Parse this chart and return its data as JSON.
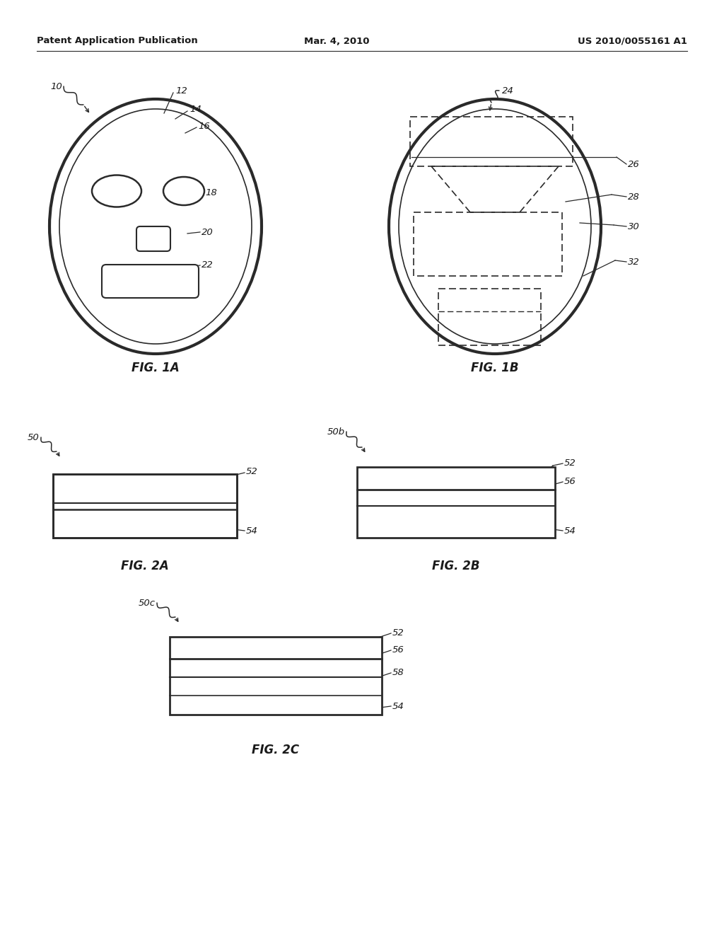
{
  "bg_color": "#ffffff",
  "header_left": "Patent Application Publication",
  "header_mid": "Mar. 4, 2010",
  "header_right": "US 2010/0055161 A1",
  "fig1a_label": "FIG. 1A",
  "fig1b_label": "FIG. 1B",
  "fig2a_label": "FIG. 2A",
  "fig2b_label": "FIG. 2B",
  "fig2c_label": "FIG. 2C",
  "text_color": "#1a1a1a",
  "line_color": "#2a2a2a",
  "label_fontsize": 9.5,
  "header_fontsize": 9.5,
  "fig_label_fontsize": 12
}
